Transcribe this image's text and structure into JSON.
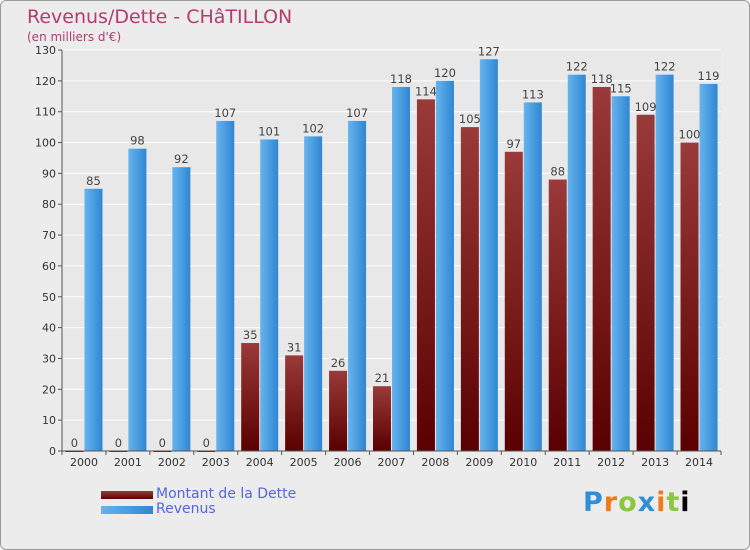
{
  "header": {
    "title": "Revenus/Dette - CHâTILLON",
    "subtitle": "(en milliers d'€)"
  },
  "legend": {
    "items": [
      {
        "label": "Montant de la Dette",
        "color": "#6b0f0f"
      },
      {
        "label": "Revenus",
        "color": "#3d9be3"
      }
    ]
  },
  "logo": {
    "text": "Proxiti",
    "letters": [
      "P",
      "r",
      "o",
      "x",
      "i",
      "t",
      "i"
    ]
  },
  "colors": {
    "debt_top": "#9a3a3a",
    "debt_bottom": "#5a0000",
    "rev_top": "#66b4ee",
    "rev_bottom": "#2f86d2",
    "grid": "#ffffff",
    "plot_bg": "#e8e8e8"
  },
  "chart_data": {
    "type": "bar",
    "title": "Revenus/Dette - CHâTILLON",
    "ylabel": "(en milliers d'€)",
    "xlabel": "",
    "categories": [
      "2000",
      "2001",
      "2002",
      "2003",
      "2004",
      "2005",
      "2006",
      "2007",
      "2008",
      "2009",
      "2010",
      "2011",
      "2012",
      "2013",
      "2014"
    ],
    "series": [
      {
        "name": "Montant de la Dette",
        "values": [
          0,
          0,
          0,
          0,
          35,
          31,
          26,
          21,
          114,
          105,
          97,
          88,
          118,
          109,
          100
        ]
      },
      {
        "name": "Revenus",
        "values": [
          85,
          98,
          92,
          107,
          101,
          102,
          107,
          118,
          120,
          127,
          113,
          122,
          115,
          122,
          119
        ]
      }
    ],
    "ylim": [
      0,
      130
    ],
    "yticks": [
      0,
      10,
      20,
      30,
      40,
      50,
      60,
      70,
      80,
      90,
      100,
      110,
      120,
      130
    ],
    "grid": true,
    "legend_position": "bottom-left"
  }
}
